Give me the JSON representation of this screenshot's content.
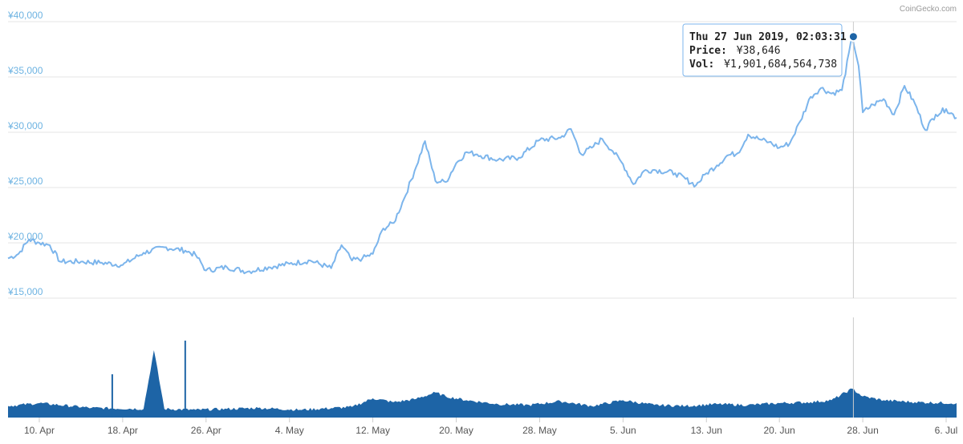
{
  "credit": "CoinGecko.com",
  "tooltip": {
    "date": "Thu 27 Jun 2019, 02:03:31",
    "price_label": "Price:",
    "price_value": "¥38,646",
    "vol_label": "Vol:",
    "vol_value": "¥1,901,684,564,738"
  },
  "colors": {
    "price_line": "#7cb5ec",
    "volume_fill": "#1d64a6",
    "grid": "#e6e6e6",
    "axis_label": "#6db3e2",
    "crosshair": "#cccccc"
  },
  "chart_data": {
    "type": "line",
    "title": "",
    "x_start": "2019-04-07",
    "x_end": "2019-07-07",
    "x_ticks": [
      "10. Apr",
      "18. Apr",
      "26. Apr",
      "4. May",
      "12. May",
      "20. May",
      "28. May",
      "5. Jun",
      "13. Jun",
      "20. Jun",
      "28. Jun",
      "6. Jul"
    ],
    "y_ticks": [
      "¥15,000",
      "¥20,000",
      "¥25,000",
      "¥30,000",
      "¥35,000",
      "¥40,000"
    ],
    "ylim": [
      15000,
      40000
    ],
    "grid": true,
    "series": [
      {
        "x": [
          "2019-04-07",
          "2019-04-08",
          "2019-04-09",
          "2019-04-10",
          "2019-04-11",
          "2019-04-12",
          "2019-04-14",
          "2019-04-16",
          "2019-04-18",
          "2019-04-20",
          "2019-04-22",
          "2019-04-24",
          "2019-04-25",
          "2019-04-26",
          "2019-04-28",
          "2019-04-30",
          "2019-05-02",
          "2019-05-04",
          "2019-05-06",
          "2019-05-08",
          "2019-05-09",
          "2019-05-10",
          "2019-05-11",
          "2019-05-12",
          "2019-05-13",
          "2019-05-14",
          "2019-05-15",
          "2019-05-16",
          "2019-05-17",
          "2019-05-18",
          "2019-05-19",
          "2019-05-20",
          "2019-05-21",
          "2019-05-22",
          "2019-05-24",
          "2019-05-26",
          "2019-05-28",
          "2019-05-30",
          "2019-05-31",
          "2019-06-01",
          "2019-06-02",
          "2019-06-03",
          "2019-06-04",
          "2019-06-05",
          "2019-06-06",
          "2019-06-07",
          "2019-06-08",
          "2019-06-10",
          "2019-06-12",
          "2019-06-13",
          "2019-06-14",
          "2019-06-15",
          "2019-06-16",
          "2019-06-17",
          "2019-06-18",
          "2019-06-19",
          "2019-06-20",
          "2019-06-21",
          "2019-06-22",
          "2019-06-23",
          "2019-06-24",
          "2019-06-25",
          "2019-06-26",
          "2019-06-27",
          "2019-06-27",
          "2019-06-28",
          "2019-06-29",
          "2019-06-30",
          "2019-07-01",
          "2019-07-02",
          "2019-07-03",
          "2019-07-04",
          "2019-07-05",
          "2019-07-06",
          "2019-07-07"
        ],
        "values": [
          18600,
          19000,
          20300,
          20000,
          19800,
          18300,
          18300,
          18200,
          18000,
          19100,
          19600,
          19300,
          18900,
          17500,
          17800,
          17400,
          17800,
          18100,
          18400,
          17700,
          19800,
          18400,
          18600,
          19000,
          21300,
          21800,
          24000,
          26500,
          29200,
          25600,
          25500,
          27200,
          28200,
          28000,
          27500,
          27700,
          29300,
          29500,
          30300,
          28000,
          28600,
          29400,
          28300,
          27100,
          25300,
          26500,
          26600,
          26300,
          25200,
          26300,
          27000,
          27900,
          28100,
          29800,
          29400,
          29100,
          28600,
          29000,
          31000,
          33200,
          34000,
          33500,
          33800,
          38646,
          36000,
          31800,
          32500,
          33000,
          31600,
          34200,
          32600,
          30200,
          31600,
          32100,
          31300
        ]
      }
    ],
    "volume": {
      "x": [
        "2019-04-07",
        "2019-04-10",
        "2019-04-15",
        "2019-04-20",
        "2019-04-21",
        "2019-04-22",
        "2019-04-25",
        "2019-04-28",
        "2019-05-01",
        "2019-05-05",
        "2019-05-10",
        "2019-05-12",
        "2019-05-14",
        "2019-05-16",
        "2019-05-18",
        "2019-05-19",
        "2019-05-21",
        "2019-05-24",
        "2019-05-27",
        "2019-05-30",
        "2019-06-02",
        "2019-06-05",
        "2019-06-08",
        "2019-06-11",
        "2019-06-14",
        "2019-06-17",
        "2019-06-20",
        "2019-06-23",
        "2019-06-25",
        "2019-06-27",
        "2019-06-28",
        "2019-06-30",
        "2019-07-03",
        "2019-07-07"
      ],
      "values": [
        0.12,
        0.15,
        0.1,
        0.09,
        0.7,
        0.09,
        0.08,
        0.09,
        0.1,
        0.08,
        0.11,
        0.2,
        0.16,
        0.19,
        0.26,
        0.22,
        0.18,
        0.14,
        0.13,
        0.17,
        0.12,
        0.18,
        0.13,
        0.12,
        0.14,
        0.13,
        0.15,
        0.16,
        0.18,
        0.3,
        0.22,
        0.18,
        0.16,
        0.15
      ],
      "spikes": [
        {
          "x": "2019-04-17",
          "value": 0.45
        },
        {
          "x": "2019-04-24",
          "value": 0.8
        }
      ]
    },
    "crosshair_at": "2019-06-27"
  }
}
